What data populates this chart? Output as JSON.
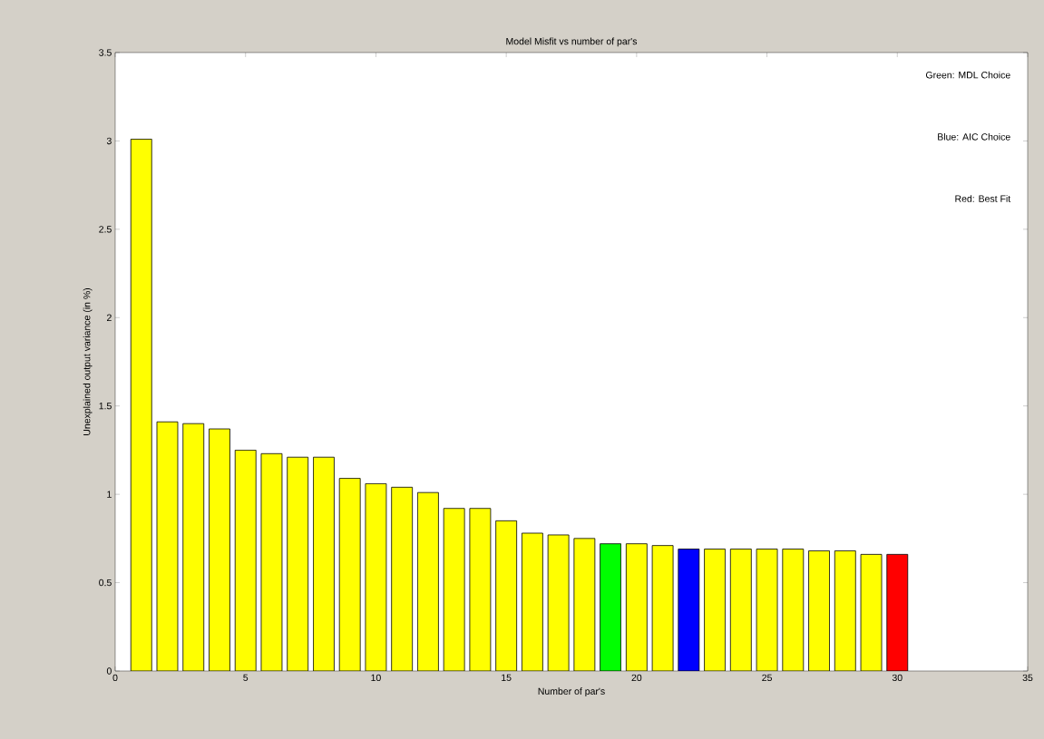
{
  "chart_data": {
    "type": "bar",
    "title": "Model Misfit vs number of par's",
    "xlabel": "Number of par's",
    "ylabel": "Unexplained output variance (in %)",
    "x": [
      1,
      2,
      3,
      4,
      5,
      6,
      7,
      8,
      9,
      10,
      11,
      12,
      13,
      14,
      15,
      16,
      17,
      18,
      19,
      20,
      21,
      22,
      23,
      24,
      25,
      26,
      27,
      28,
      29,
      30
    ],
    "values": [
      3.01,
      1.41,
      1.4,
      1.37,
      1.25,
      1.23,
      1.21,
      1.21,
      1.09,
      1.06,
      1.04,
      1.01,
      0.92,
      0.92,
      0.85,
      0.78,
      0.77,
      0.75,
      0.72,
      0.72,
      0.71,
      0.69,
      0.69,
      0.69,
      0.69,
      0.69,
      0.68,
      0.68,
      0.66,
      0.66
    ],
    "colors": [
      "#ffff00",
      "#ffff00",
      "#ffff00",
      "#ffff00",
      "#ffff00",
      "#ffff00",
      "#ffff00",
      "#ffff00",
      "#ffff00",
      "#ffff00",
      "#ffff00",
      "#ffff00",
      "#ffff00",
      "#ffff00",
      "#ffff00",
      "#ffff00",
      "#ffff00",
      "#ffff00",
      "#00ff00",
      "#ffff00",
      "#ffff00",
      "#0000ff",
      "#ffff00",
      "#ffff00",
      "#ffff00",
      "#ffff00",
      "#ffff00",
      "#ffff00",
      "#ffff00",
      "#ff0000"
    ],
    "xlim": [
      0,
      35
    ],
    "xticks": [
      0,
      5,
      10,
      15,
      20,
      25,
      30,
      35
    ],
    "ylim": [
      0,
      3.5
    ],
    "yticks": [
      0,
      0.5,
      1,
      1.5,
      2,
      2.5,
      3,
      3.5
    ],
    "annotations": [
      "Green: MDL Choice",
      "Blue: AIC Choice",
      "Red: Best Fit"
    ]
  }
}
